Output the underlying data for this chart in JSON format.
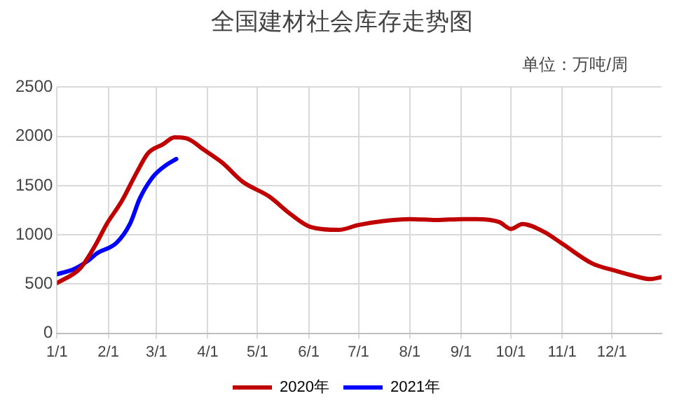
{
  "chart_data": {
    "type": "line",
    "title": "全国建材社会库存走势图",
    "annotations": [
      "单位：万吨/周"
    ],
    "xlim": [
      "--01-01",
      "--12-31"
    ],
    "xticks": [
      {
        "value": "--01-01",
        "label": "1/1"
      },
      {
        "value": "--02-01",
        "label": "2/1"
      },
      {
        "value": "--03-01",
        "label": "3/1"
      },
      {
        "value": "--04-01",
        "label": "4/1"
      },
      {
        "value": "--05-01",
        "label": "5/1"
      },
      {
        "value": "--06-01",
        "label": "6/1"
      },
      {
        "value": "--07-01",
        "label": "7/1"
      },
      {
        "value": "--08-01",
        "label": "8/1"
      },
      {
        "value": "--09-01",
        "label": "9/1"
      },
      {
        "value": "--10-01",
        "label": "10/1"
      },
      {
        "value": "--11-01",
        "label": "11/1"
      },
      {
        "value": "--12-01",
        "label": "12/1"
      }
    ],
    "ylim": [
      0,
      2500
    ],
    "yticks": [
      0,
      500,
      1000,
      1500,
      2000,
      2500
    ],
    "grid": true,
    "legend": "bottom",
    "marker": "none",
    "line_style": "solid",
    "series": [
      {
        "name": "2020年",
        "color": "#c00000",
        "x": [
          "--01-01",
          "--01-15",
          "--01-24",
          "--01-31",
          "--02-09",
          "--02-18",
          "--02-25",
          "--03-05",
          "--03-12",
          "--03-19",
          "--03-30",
          "--04-10",
          "--04-22",
          "--05-08",
          "--05-21",
          "--06-02",
          "--06-19",
          "--07-01",
          "--07-16",
          "--08-01",
          "--08-17",
          "--09-02",
          "--09-10",
          "--09-24",
          "--10-01",
          "--10-08",
          "--10-21",
          "--11-01",
          "--11-19",
          "--12-02",
          "--12-15",
          "--12-24",
          "--12-31"
        ],
        "values": [
          510,
          660,
          890,
          1110,
          1340,
          1630,
          1830,
          1920,
          1990,
          1980,
          1860,
          1730,
          1540,
          1390,
          1210,
          1080,
          1050,
          1100,
          1140,
          1160,
          1150,
          1160,
          1160,
          1130,
          1060,
          1110,
          1030,
          910,
          710,
          640,
          580,
          550,
          570
        ]
      },
      {
        "name": "2021年",
        "color": "#0000ff",
        "x": [
          "--01-01",
          "--01-11",
          "--01-20",
          "--01-25",
          "--02-06",
          "--02-14",
          "--02-20",
          "--02-28",
          "--03-07",
          "--03-13"
        ],
        "values": [
          600,
          650,
          740,
          810,
          920,
          1110,
          1370,
          1590,
          1710,
          1770
        ]
      }
    ]
  }
}
